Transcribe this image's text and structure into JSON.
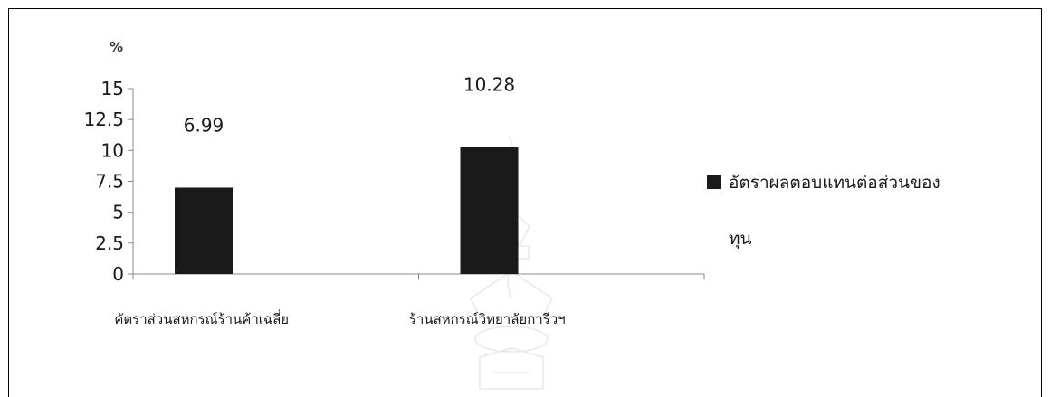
{
  "chart_data": {
    "type": "bar",
    "ylabel": "%",
    "ylim": [
      0,
      15
    ],
    "yticks": [
      "0",
      "2.5",
      "5",
      "7.5",
      "10",
      "12.5",
      "15"
    ],
    "categories": [
      "คัตราส่วนสหกรณ์ร้านค้าเฉลี่ย",
      "ร้านสหกรณ์วิทยาลัยการีวฯ"
    ],
    "series": [
      {
        "name": "อัตราผลตอบแทนต่อส่วนของทุน",
        "values": [
          6.99,
          10.28
        ],
        "color": "#1a1a1a"
      }
    ],
    "data_labels": [
      "6.99",
      "10.28"
    ],
    "legend": {
      "position": "right",
      "lines": [
        "อัตราผลตอบแทนต่อส่วนของ",
        "ทุน"
      ]
    }
  },
  "watermark": {
    "text": "มหาวิทยาลัยเทคโนโลยีสุรนารี"
  }
}
